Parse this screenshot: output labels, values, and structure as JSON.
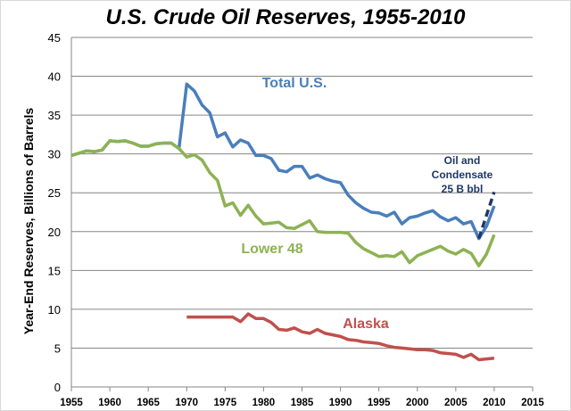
{
  "chart_data": {
    "type": "line",
    "title": "U.S. Crude Oil Reserves, 1955-2010",
    "xlabel": "",
    "ylabel": "Year-End Reserves, Billions of Barrels",
    "xlim": [
      1955,
      2015
    ],
    "ylim": [
      0,
      45
    ],
    "xticks": [
      1955,
      1960,
      1965,
      1970,
      1975,
      1980,
      1985,
      1990,
      1995,
      2000,
      2005,
      2010,
      2015
    ],
    "yticks": [
      0,
      5,
      10,
      15,
      20,
      25,
      30,
      35,
      40,
      45
    ],
    "grid": true,
    "series": [
      {
        "name": "Total U.S.",
        "color": "#4a7ebb",
        "start": 1955,
        "values": [
          29.8,
          30.1,
          30.4,
          30.3,
          30.5,
          31.7,
          31.6,
          31.7,
          31.4,
          31.0,
          31.0,
          31.3,
          31.4,
          31.4,
          30.7,
          39.0,
          38.1,
          36.3,
          35.3,
          32.2,
          32.7,
          30.9,
          31.8,
          31.4,
          29.8,
          29.8,
          29.4,
          27.9,
          27.7,
          28.4,
          28.4,
          26.9,
          27.3,
          26.8,
          26.5,
          26.3,
          24.7,
          23.7,
          23.0,
          22.5,
          22.4,
          22.0,
          22.5,
          21.0,
          21.8,
          22.0,
          22.4,
          22.7,
          21.9,
          21.4,
          21.8,
          21.0,
          21.3,
          19.1,
          20.7,
          23.3
        ]
      },
      {
        "name": "Lower 48",
        "color": "#8db253",
        "start": 1955,
        "values": [
          29.8,
          30.1,
          30.4,
          30.3,
          30.5,
          31.7,
          31.6,
          31.7,
          31.4,
          31.0,
          31.0,
          31.3,
          31.4,
          31.4,
          30.7,
          29.6,
          29.9,
          29.2,
          27.6,
          26.6,
          23.3,
          23.7,
          22.1,
          23.4,
          22.0,
          21.0,
          21.1,
          21.2,
          20.5,
          20.4,
          20.9,
          21.4,
          20.0,
          19.9,
          19.9,
          19.9,
          19.8,
          18.6,
          17.8,
          17.3,
          16.8,
          16.9,
          16.8,
          17.4,
          16.0,
          16.9,
          17.3,
          17.7,
          18.1,
          17.5,
          17.1,
          17.7,
          17.2,
          15.6,
          17.1,
          19.6
        ]
      },
      {
        "name": "Alaska",
        "color": "#c0504d",
        "start": 1970,
        "values": [
          9.0,
          9.0,
          9.0,
          9.0,
          9.0,
          9.0,
          9.0,
          8.4,
          9.4,
          8.8,
          8.8,
          8.3,
          7.4,
          7.3,
          7.6,
          7.1,
          6.9,
          7.4,
          6.9,
          6.7,
          6.5,
          6.1,
          6.0,
          5.8,
          5.7,
          5.6,
          5.3,
          5.1,
          5.0,
          4.9,
          4.8,
          4.8,
          4.7,
          4.4,
          4.3,
          4.2,
          3.8,
          4.2,
          3.5,
          3.6,
          3.7
        ]
      },
      {
        "name": "Oil and Condensate",
        "color": "#1f3864",
        "dashed": true,
        "x": [
          2008,
          2010
        ],
        "values": [
          19.1,
          25.1
        ]
      }
    ],
    "annotations": [
      {
        "text": "Total U.S.",
        "color": "#4a7ebb"
      },
      {
        "text": "Lower 48",
        "color": "#8db253"
      },
      {
        "text": "Alaska",
        "color": "#c0504d"
      },
      {
        "text": "Oil and",
        "color": "#1f3864"
      },
      {
        "text": "Condensate",
        "color": "#1f3864"
      },
      {
        "text": "25 B bbl",
        "color": "#1f3864"
      }
    ]
  }
}
